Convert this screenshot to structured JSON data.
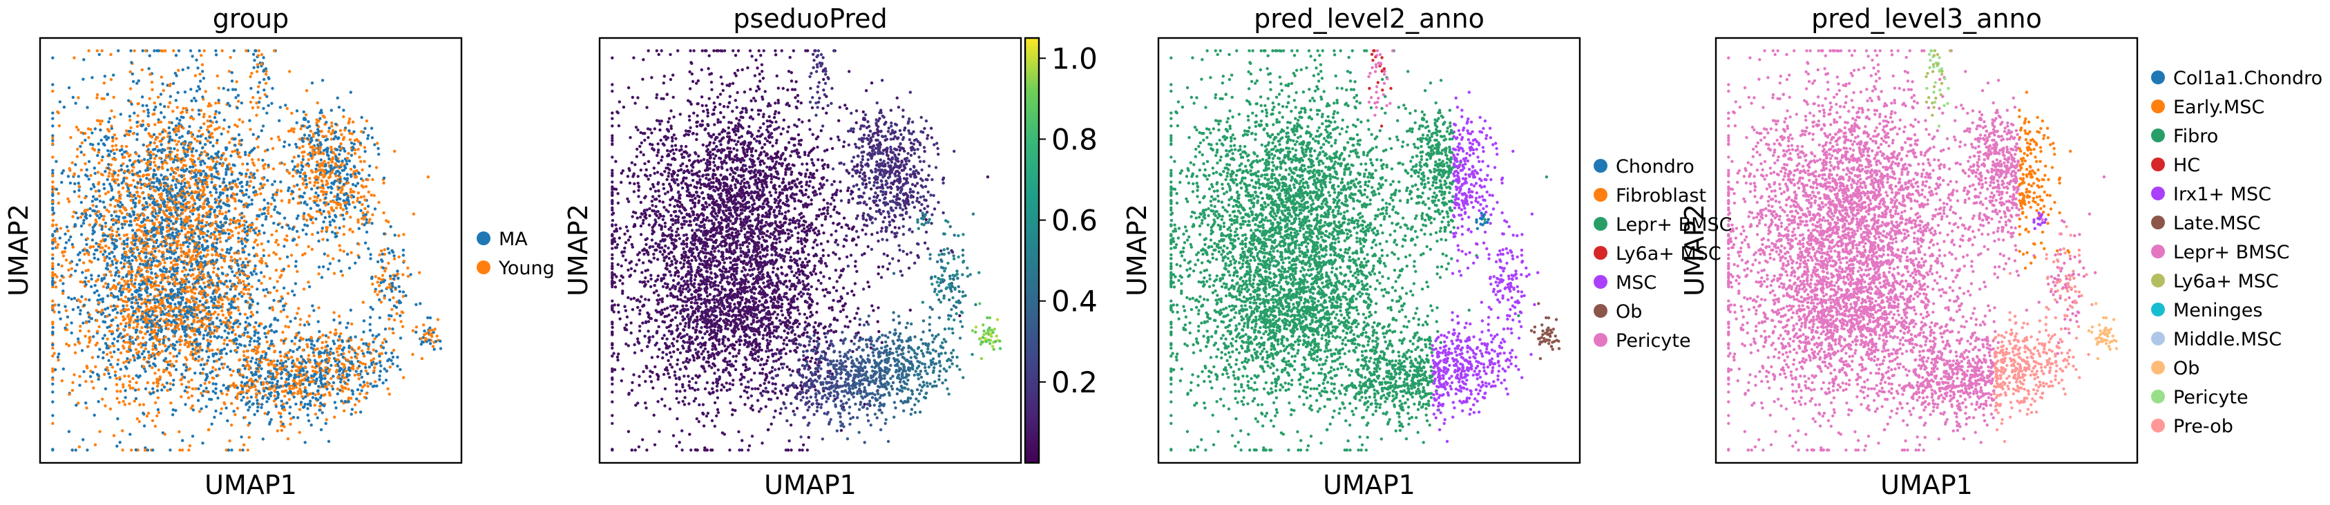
{
  "chart_data": [
    {
      "type": "scatter",
      "title": "group",
      "xlabel": "UMAP1",
      "ylabel": "UMAP2",
      "legend_position": "right",
      "series": [
        {
          "name": "MA",
          "color": "#1f77b4"
        },
        {
          "name": "Young",
          "color": "#ff7f0e"
        }
      ]
    },
    {
      "type": "scatter",
      "title": "pseduoPred",
      "xlabel": "UMAP1",
      "ylabel": "UMAP2",
      "colorbar": {
        "colormap": "viridis",
        "range": [
          0.0,
          1.05
        ],
        "ticks": [
          0.2,
          0.4,
          0.6,
          0.8,
          1.0
        ],
        "tick_labels": [
          "0.2",
          "0.4",
          "0.6",
          "0.8",
          "1.0"
        ]
      }
    },
    {
      "type": "scatter",
      "title": "pred_level2_anno",
      "xlabel": "UMAP1",
      "ylabel": "UMAP2",
      "legend_position": "right",
      "series": [
        {
          "name": "Chondro",
          "color": "#1f77b4"
        },
        {
          "name": "Fibroblast",
          "color": "#ff7f0e"
        },
        {
          "name": "Lepr+ BMSC",
          "color": "#279e68"
        },
        {
          "name": "Ly6a+ MSC",
          "color": "#d62728"
        },
        {
          "name": "MSC",
          "color": "#aa40fc"
        },
        {
          "name": "Ob",
          "color": "#8c564b"
        },
        {
          "name": "Pericyte",
          "color": "#e377c2"
        }
      ]
    },
    {
      "type": "scatter",
      "title": "pred_level3_anno",
      "xlabel": "UMAP1",
      "ylabel": "UMAP2",
      "legend_position": "right",
      "series": [
        {
          "name": "Col1a1.Chondro",
          "color": "#1f77b4"
        },
        {
          "name": "Early.MSC",
          "color": "#ff7f0e"
        },
        {
          "name": "Fibro",
          "color": "#279e68"
        },
        {
          "name": "HC",
          "color": "#d62728"
        },
        {
          "name": "Irx1+ MSC",
          "color": "#aa40fc"
        },
        {
          "name": "Late.MSC",
          "color": "#8c564b"
        },
        {
          "name": "Lepr+ BMSC",
          "color": "#e377c2"
        },
        {
          "name": "Ly6a+ MSC",
          "color": "#b5bd61"
        },
        {
          "name": "Meninges",
          "color": "#17becf"
        },
        {
          "name": "Middle.MSC",
          "color": "#aec7e8"
        },
        {
          "name": "Ob",
          "color": "#ffbb78"
        },
        {
          "name": "Pericyte",
          "color": "#98df8a"
        },
        {
          "name": "Pre-ob",
          "color": "#ff9896"
        }
      ]
    }
  ]
}
